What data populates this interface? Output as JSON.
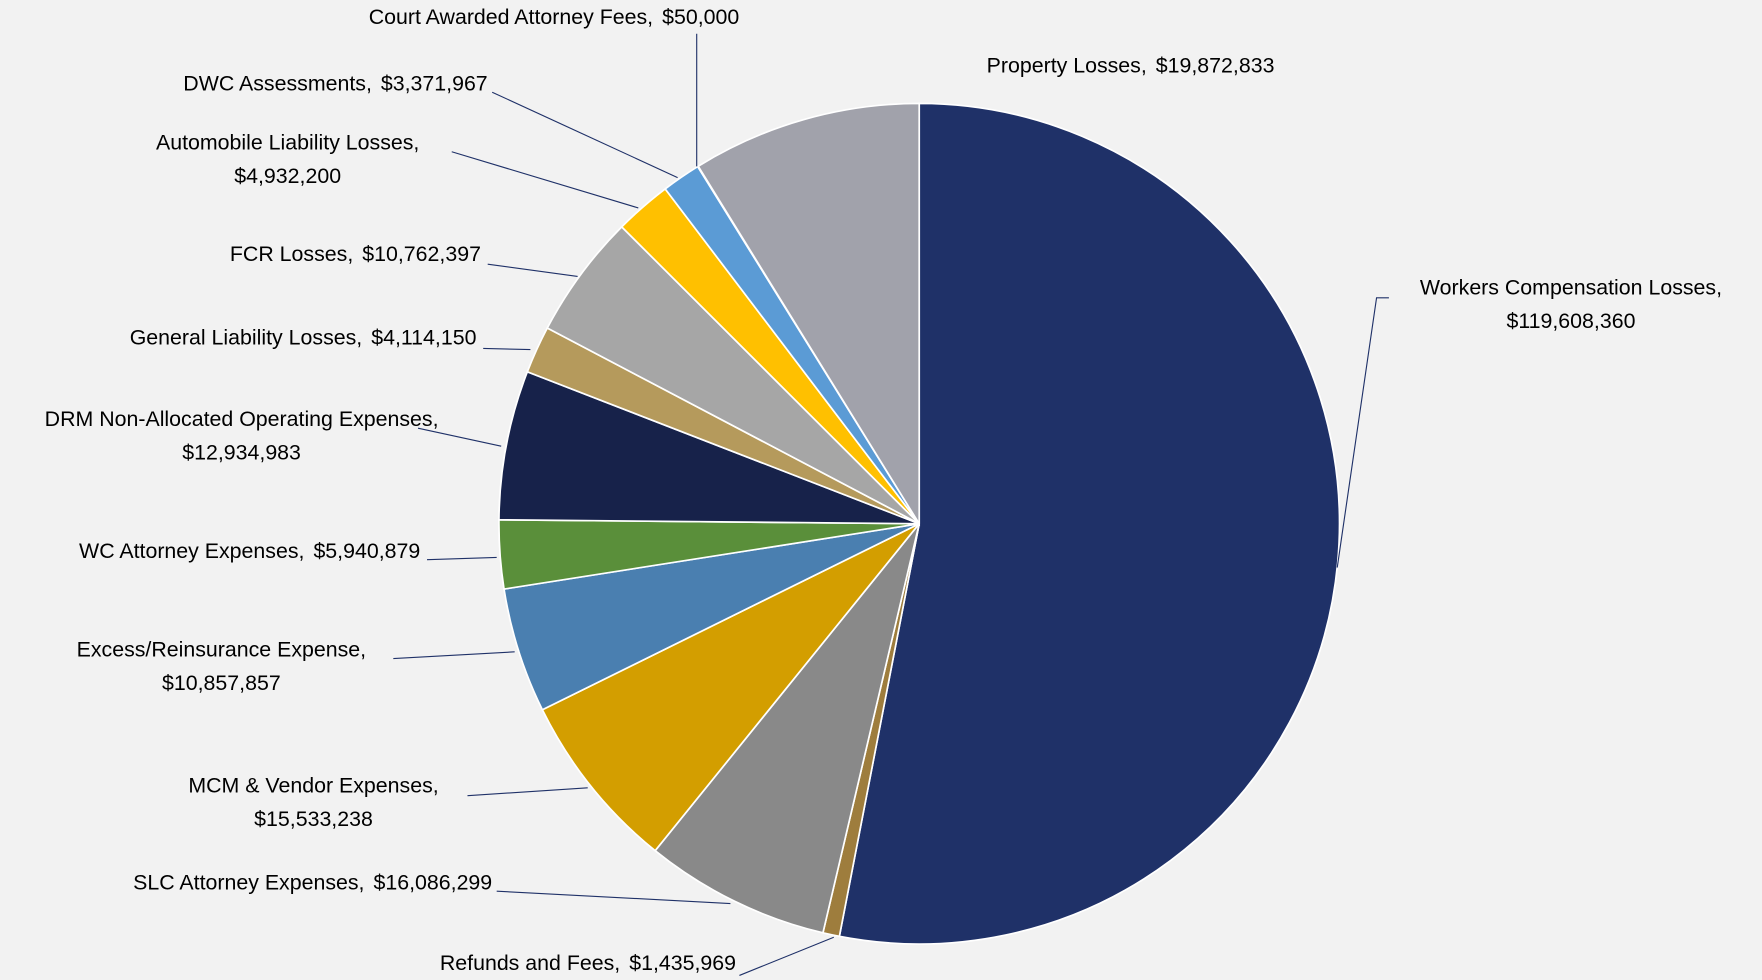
{
  "chart_data": {
    "type": "pie",
    "categories": [
      "Workers Compensation Losses,",
      "Refunds and Fees,",
      "SLC Attorney Expenses,",
      "MCM & Vendor Expenses,",
      "Excess/Reinsurance Expense,",
      "WC Attorney Expenses,",
      "DRM Non-Allocated Operating Expenses,",
      "General Liability Losses,",
      "FCR Losses,",
      "Automobile Liability Losses,",
      "DWC Assessments,",
      "Court Awarded Attorney Fees,",
      "Property Losses,"
    ],
    "values": [
      119608360,
      1435969,
      16086299,
      15533238,
      10857857,
      5940879,
      12934983,
      4114150,
      10762397,
      4932200,
      3371967,
      50000,
      19872833
    ],
    "value_labels": [
      "$119,608,360",
      "$1,435,969",
      "$16,086,299",
      "$15,533,238",
      "$10,857,857",
      "$5,940,879",
      "$12,934,983",
      "$4,114,150",
      "$10,762,397",
      "$4,932,200",
      "$3,371,967",
      "$50,000",
      "$19,872,833"
    ],
    "colors": [
      "#1f3168",
      "#9e7d3d",
      "#898989",
      "#d39e00",
      "#4a7fb0",
      "#5a8f3a",
      "#17224a",
      "#b59a5c",
      "#a6a6a6",
      "#ffc000",
      "#5b9bd5",
      "#8fb4d9",
      "#a1a2ab"
    ]
  }
}
